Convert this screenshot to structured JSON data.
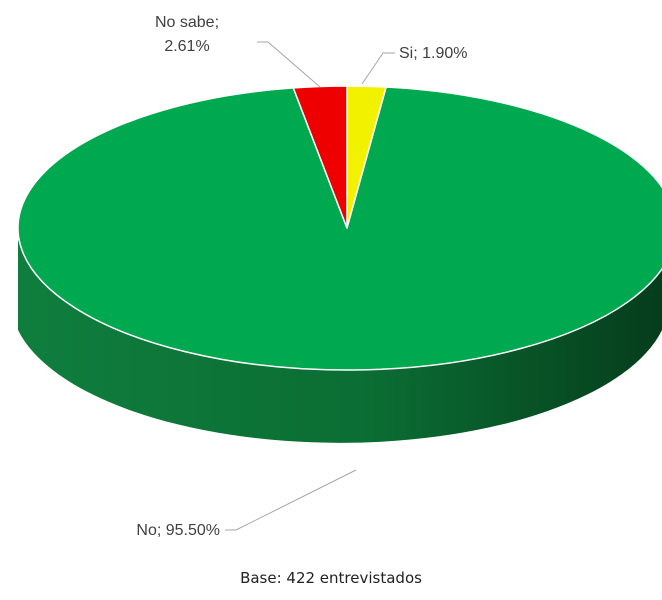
{
  "chart_data": {
    "type": "pie",
    "title": "",
    "labels": [
      "Si",
      "No",
      "No sabe"
    ],
    "values": [
      1.9,
      95.5,
      2.61
    ],
    "unit": "%",
    "colors": [
      "#F2F200",
      "#00A84F",
      "#EE0000"
    ],
    "data_labels": [
      {
        "text": "Si; 1.90%"
      },
      {
        "text": "No; 95.50%"
      },
      {
        "line1": "No sabe;",
        "line2": "2.61%"
      }
    ],
    "style": "3d-tilted",
    "legend": "none"
  },
  "footer": {
    "base_note": "Base: 422 entrevistados"
  }
}
